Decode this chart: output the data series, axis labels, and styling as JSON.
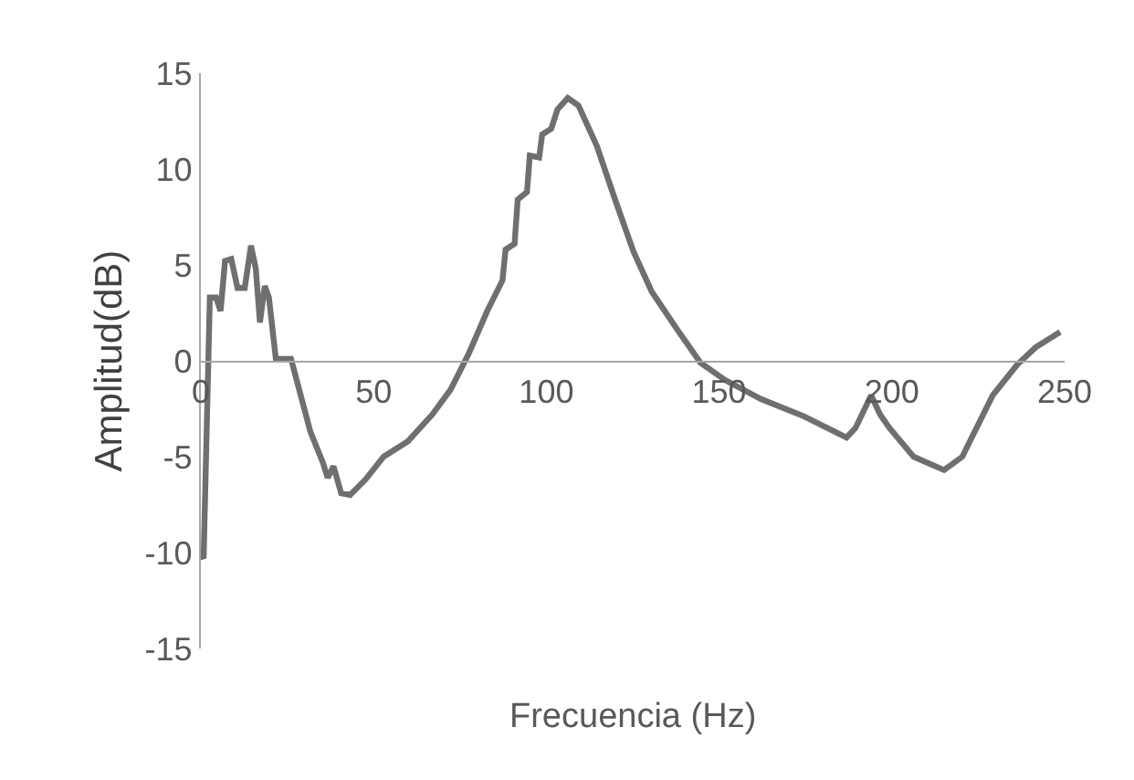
{
  "chart_data": {
    "type": "line",
    "xlabel": "Frecuencia (Hz)",
    "ylabel": "Amplitud(dB)",
    "xlim": [
      0,
      250
    ],
    "xticks": [
      0,
      50,
      100,
      150,
      200,
      250
    ],
    "ylim": [
      -15,
      15
    ],
    "yticks": [
      -15,
      -10,
      -5,
      0,
      5,
      10,
      15
    ],
    "marker": "none",
    "line_style": "solid",
    "series": [
      {
        "color": "#6f6f6f",
        "x": [
          0.4,
          0.8,
          2.6,
          4.4,
          5.7,
          7.0,
          8.8,
          10.6,
          12.7,
          14.5,
          15.9,
          17.1,
          18.5,
          19.7,
          21.7,
          26.1,
          31.7,
          35.3,
          36.7,
          38.4,
          40.6,
          43.2,
          47.6,
          52.9,
          59.9,
          67.0,
          72.3,
          77.6,
          82.9,
          87.3,
          88.2,
          90.8,
          91.7,
          94.4,
          95.2,
          97.9,
          98.8,
          101.4,
          103.2,
          106.2,
          109.3,
          114.6,
          119.9,
          125.2,
          130.5,
          137.6,
          144.6,
          151.7,
          162.2,
          174.6,
          186.9,
          189.5,
          194.0,
          196.6,
          199.3,
          206.3,
          215.1,
          220.4,
          229.2,
          236.3,
          241.6,
          248.7
        ],
        "values": [
          -10.2,
          -10.3,
          3.3,
          3.3,
          2.6,
          5.2,
          5.3,
          3.8,
          3.8,
          6.0,
          4.8,
          2.0,
          3.9,
          3.3,
          0.1,
          0.1,
          -3.7,
          -5.3,
          -6.1,
          -5.5,
          -6.9,
          -7.0,
          -6.2,
          -5.0,
          -4.2,
          -2.8,
          -1.5,
          0.4,
          2.6,
          4.2,
          5.8,
          6.1,
          8.4,
          8.8,
          10.7,
          10.6,
          11.8,
          12.1,
          13.1,
          13.7,
          13.3,
          11.2,
          8.4,
          5.7,
          3.6,
          1.7,
          -0.1,
          -1.0,
          -2.0,
          -2.9,
          -4.0,
          -3.5,
          -1.8,
          -2.8,
          -3.5,
          -5.0,
          -5.7,
          -5.0,
          -1.8,
          -0.2,
          0.7,
          1.5
        ]
      }
    ]
  }
}
